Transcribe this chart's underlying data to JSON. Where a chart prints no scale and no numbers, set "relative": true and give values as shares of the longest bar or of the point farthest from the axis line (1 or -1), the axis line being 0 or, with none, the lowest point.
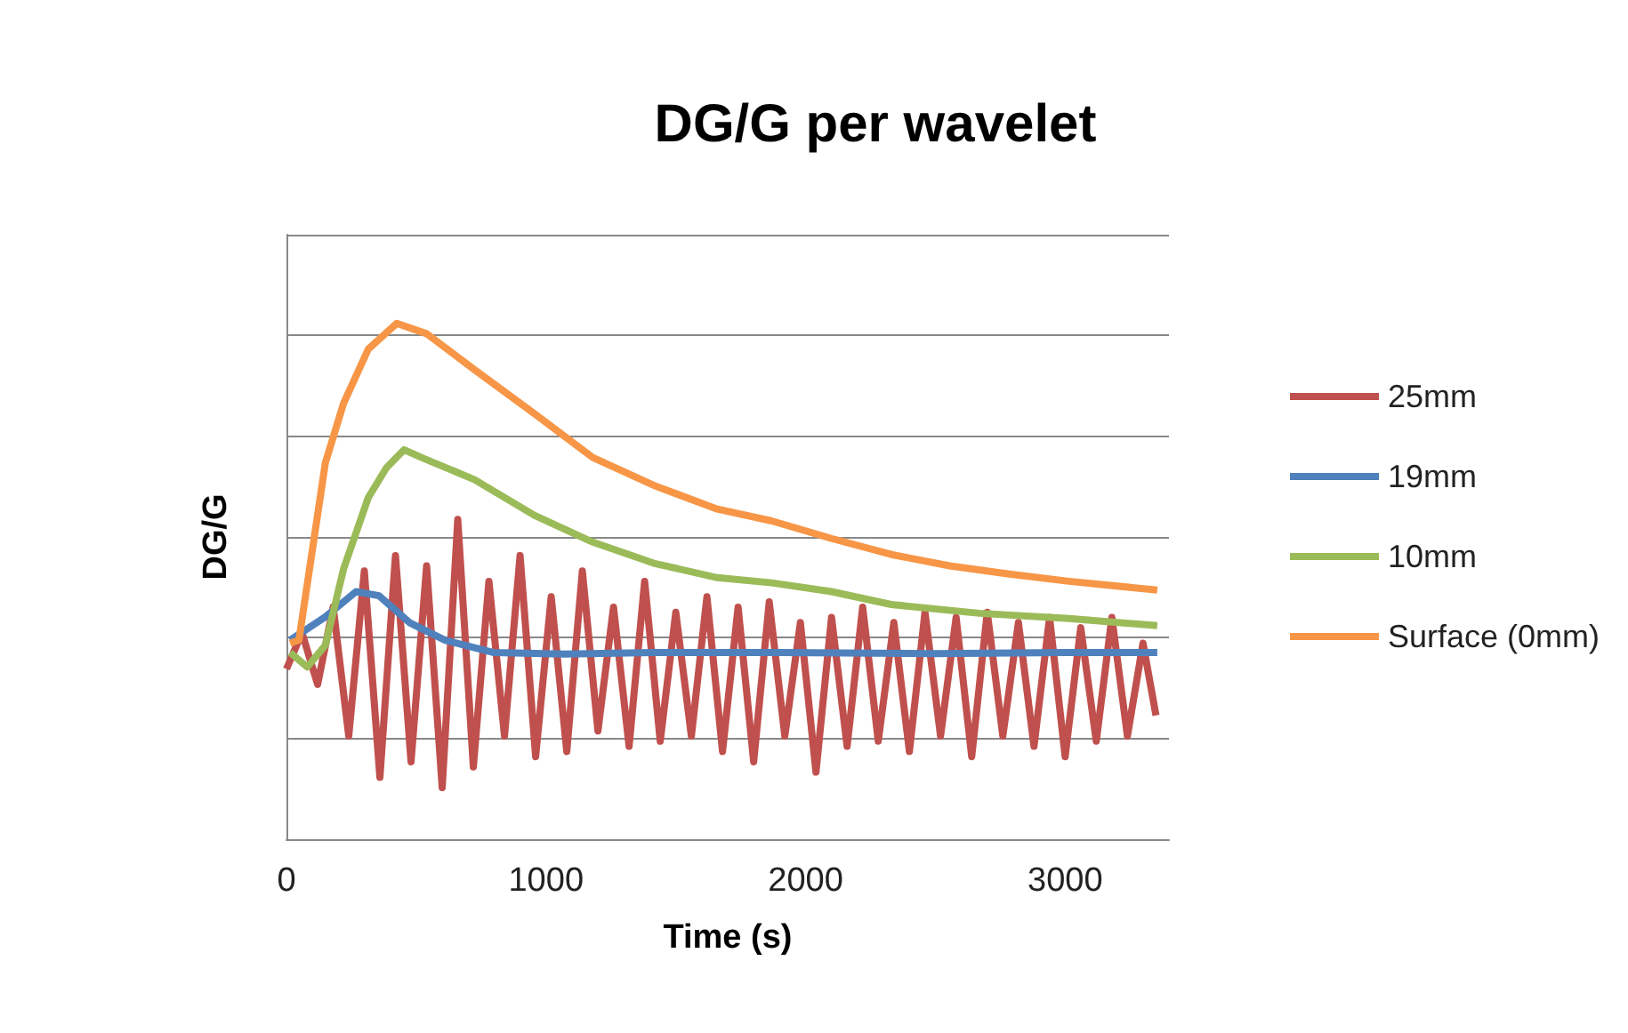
{
  "chart_data": {
    "type": "line",
    "title": "DG/G per wavelet",
    "xlabel": "Time (s)",
    "ylabel": "DG/G",
    "relative": true,
    "xlim": [
      0,
      3400
    ],
    "xticks": [
      0,
      1000,
      2000,
      3000
    ],
    "grid": "y",
    "legend": "right",
    "marker": "none",
    "line_style": "solid",
    "series": [
      {
        "name": "25mm",
        "color": "#c0504d",
        "x": [
          0,
          60,
          120,
          180,
          240,
          300,
          360,
          420,
          480,
          540,
          600,
          660,
          720,
          780,
          840,
          900,
          960,
          1020,
          1080,
          1140,
          1200,
          1260,
          1320,
          1380,
          1440,
          1500,
          1560,
          1620,
          1680,
          1740,
          1800,
          1860,
          1920,
          1980,
          2040,
          2100,
          2160,
          2220,
          2280,
          2340,
          2400,
          2460,
          2520,
          2580,
          2640,
          2700,
          2760,
          2820,
          2880,
          2940,
          3000,
          3060,
          3120,
          3180,
          3240,
          3300,
          3350
        ],
        "values": [
          0.33,
          0.4,
          0.3,
          0.45,
          0.2,
          0.52,
          0.12,
          0.55,
          0.15,
          0.53,
          0.1,
          0.62,
          0.14,
          0.5,
          0.2,
          0.55,
          0.16,
          0.47,
          0.17,
          0.52,
          0.21,
          0.45,
          0.18,
          0.5,
          0.19,
          0.44,
          0.2,
          0.47,
          0.17,
          0.45,
          0.15,
          0.46,
          0.2,
          0.42,
          0.13,
          0.43,
          0.18,
          0.45,
          0.19,
          0.42,
          0.17,
          0.44,
          0.2,
          0.43,
          0.16,
          0.44,
          0.2,
          0.42,
          0.18,
          0.43,
          0.16,
          0.41,
          0.19,
          0.43,
          0.2,
          0.38,
          0.24
        ]
      },
      {
        "name": "19mm",
        "color": "#4f81bd",
        "x": [
          14,
          150,
          268,
          357,
          474,
          611,
          796,
          1070,
          1415,
          1900,
          2500,
          3000,
          3355
        ],
        "values": [
          0.386,
          0.431,
          0.48,
          0.472,
          0.42,
          0.386,
          0.362,
          0.359,
          0.362,
          0.362,
          0.36,
          0.362,
          0.362
        ]
      },
      {
        "name": "10mm",
        "color": "#9bbb59",
        "x": [
          14,
          80,
          150,
          220,
          315,
          385,
          453,
          520,
          725,
          955,
          1180,
          1415,
          1660,
          1870,
          2100,
          2330,
          2670,
          3015,
          3355
        ],
        "values": [
          0.362,
          0.334,
          0.376,
          0.524,
          0.662,
          0.72,
          0.755,
          0.74,
          0.697,
          0.628,
          0.576,
          0.535,
          0.507,
          0.497,
          0.48,
          0.455,
          0.438,
          0.428,
          0.414
        ]
      },
      {
        "name": "Surface (0mm)",
        "color": "#f79646",
        "x": [
          14,
          48,
          150,
          220,
          315,
          425,
          540,
          725,
          955,
          1180,
          1415,
          1660,
          1870,
          2100,
          2330,
          2555,
          2785,
          3015,
          3355
        ],
        "values": [
          0.38,
          0.386,
          0.73,
          0.845,
          0.95,
          1,
          0.98,
          0.91,
          0.825,
          0.74,
          0.686,
          0.64,
          0.617,
          0.583,
          0.552,
          0.53,
          0.514,
          0.5,
          0.483
        ]
      }
    ]
  }
}
